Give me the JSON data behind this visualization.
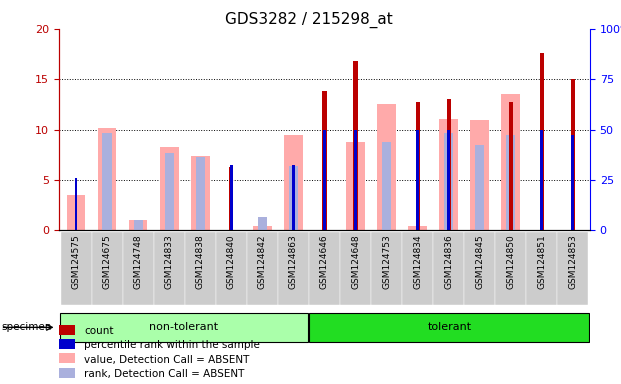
{
  "title": "GDS3282 / 215298_at",
  "samples": [
    "GSM124575",
    "GSM124675",
    "GSM124748",
    "GSM124833",
    "GSM124838",
    "GSM124840",
    "GSM124842",
    "GSM124863",
    "GSM124646",
    "GSM124648",
    "GSM124753",
    "GSM124834",
    "GSM124836",
    "GSM124845",
    "GSM124850",
    "GSM124851",
    "GSM124853"
  ],
  "groups": [
    {
      "label": "non-tolerant",
      "start": 0,
      "end": 7,
      "color": "#aaffaa"
    },
    {
      "label": "tolerant",
      "start": 8,
      "end": 16,
      "color": "#22dd22"
    }
  ],
  "count": [
    0,
    0,
    0,
    0,
    0,
    6.3,
    0,
    0,
    13.8,
    16.8,
    0,
    12.7,
    13.0,
    0,
    12.7,
    17.6,
    15.0
  ],
  "percentile_rank": [
    5.2,
    0,
    0,
    0,
    0,
    6.5,
    0,
    6.5,
    10.0,
    10.0,
    0,
    10.0,
    10.0,
    0,
    0,
    10.0,
    9.5
  ],
  "value_absent": [
    3.5,
    10.2,
    1.0,
    8.3,
    7.4,
    0,
    0.4,
    9.5,
    0,
    8.8,
    12.5,
    0.4,
    11.1,
    11.0,
    13.5,
    0,
    0
  ],
  "rank_absent": [
    0,
    9.7,
    1.0,
    7.7,
    7.3,
    0,
    1.3,
    6.4,
    0,
    0,
    8.8,
    0,
    9.7,
    8.5,
    9.5,
    0,
    0
  ],
  "ylim_left": [
    0,
    20
  ],
  "ylim_right": [
    0,
    100
  ],
  "count_color": "#bb0000",
  "percentile_color": "#0000cc",
  "value_absent_color": "#ffaaaa",
  "rank_absent_color": "#aab0dd",
  "bg_color": "#cccccc",
  "title_fontsize": 11,
  "tick_fontsize": 6.5,
  "label_fontsize": 8,
  "legend_fontsize": 7.5
}
